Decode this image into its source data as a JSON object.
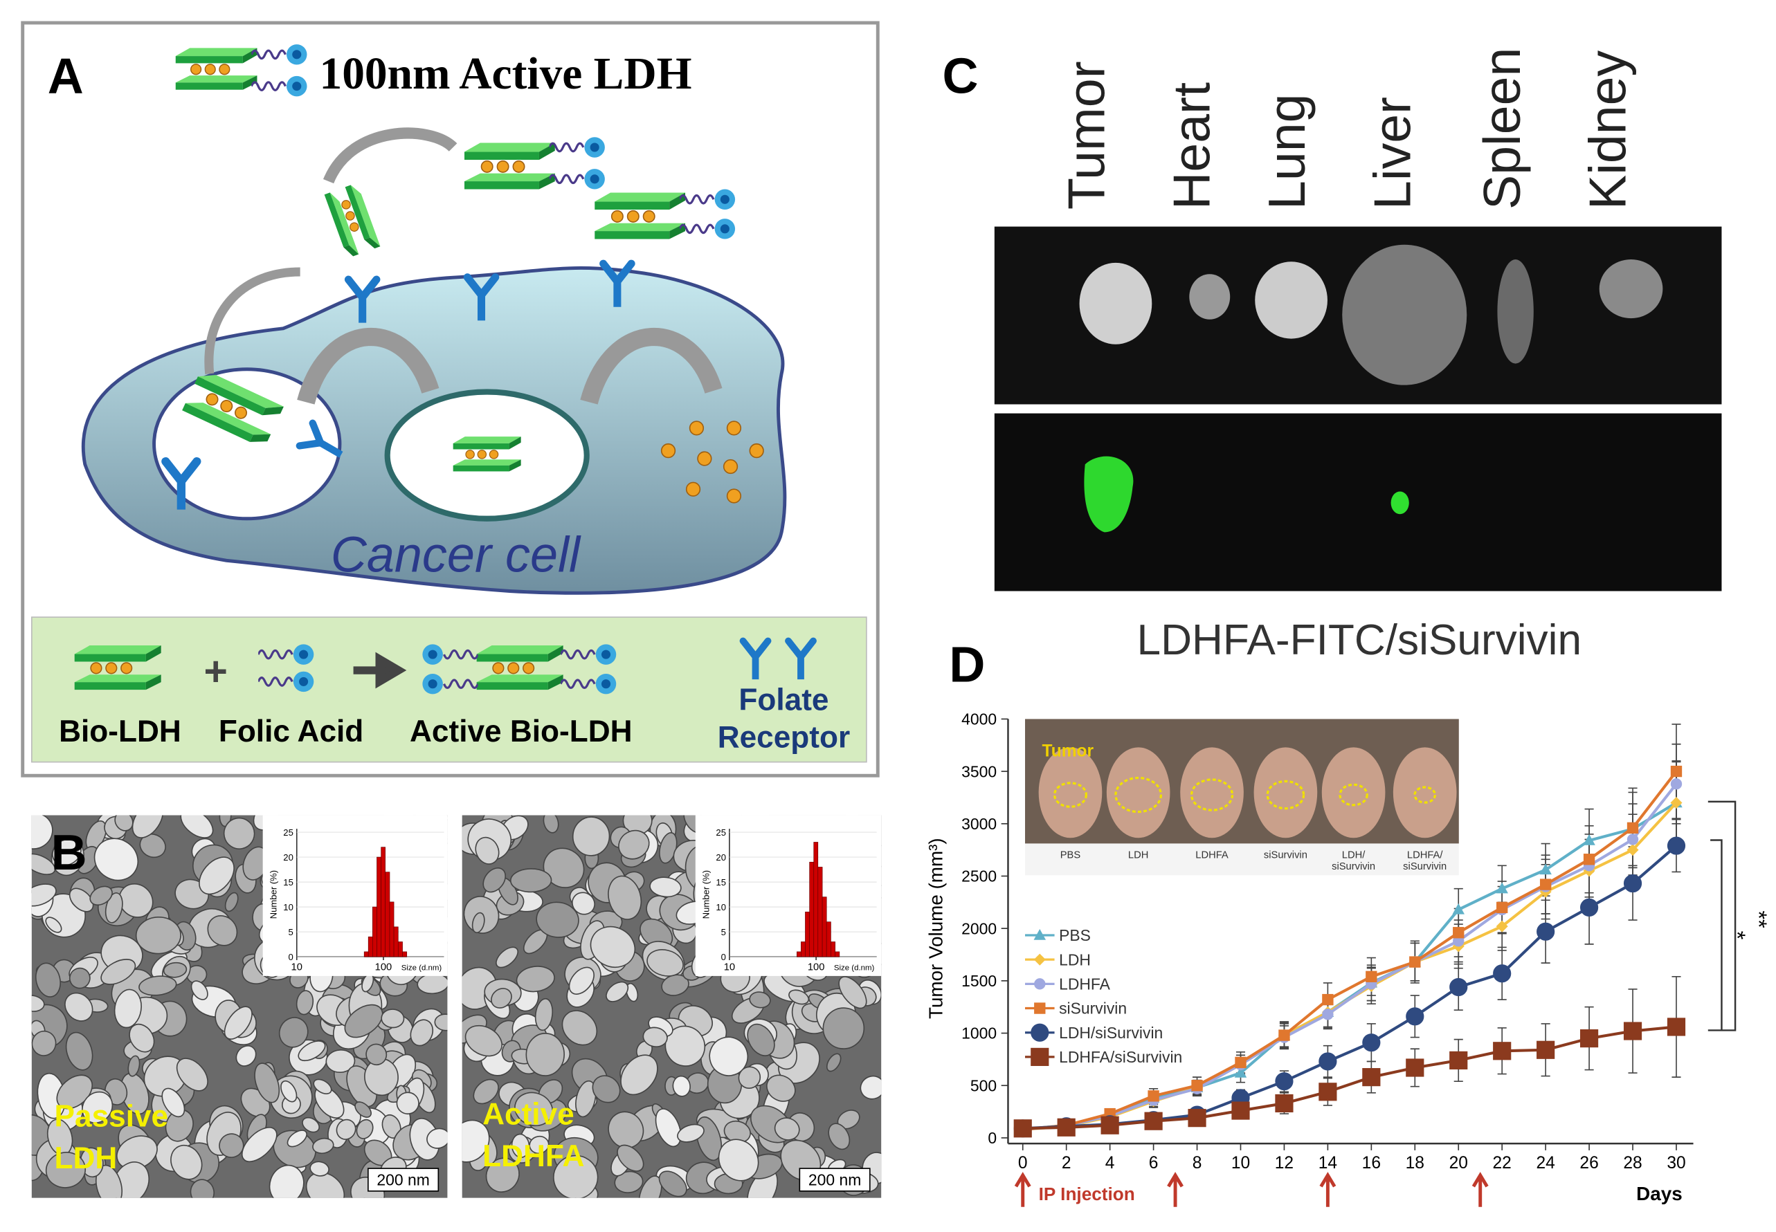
{
  "panel_a": {
    "label": "A",
    "title": "100nm Active LDH",
    "cell_label": "Cancer cell",
    "legend": {
      "bio_ldh": "Bio-LDH",
      "folic_acid": "Folic Acid",
      "active_bio_ldh": "Active Bio-LDH",
      "folate_receptor": [
        "Folate",
        "Receptor"
      ]
    }
  },
  "panel_b": {
    "label": "B",
    "images": [
      {
        "caption": [
          "Passive",
          "LDH"
        ],
        "scale_bar": "200 nm"
      },
      {
        "caption": [
          "Active",
          "LDHFA"
        ],
        "scale_bar": "200 nm"
      }
    ]
  },
  "panel_c": {
    "label": "C",
    "organs": [
      "Tumor",
      "Heart",
      "Lung",
      "Liver",
      "Spleen",
      "Kidney"
    ],
    "caption": "LDHFA-FITC/siSurvivin"
  },
  "panel_d": {
    "label": "D",
    "photo_title": "Tumor",
    "photo_labels": [
      [
        "PBS"
      ],
      [
        "LDH"
      ],
      [
        "LDHFA"
      ],
      [
        "siSurvivin"
      ],
      [
        "LDH/",
        "siSurvivin"
      ],
      [
        "LDHFA/",
        "siSurvivin"
      ]
    ],
    "significance": [
      "*",
      "**"
    ]
  },
  "chart_data": [
    {
      "type": "histogram",
      "bins": [
        60,
        67,
        75,
        84,
        94,
        105,
        118,
        132,
        148,
        166,
        186
      ],
      "values": [
        1,
        4,
        10,
        20,
        22,
        17,
        11,
        6,
        3,
        1
      ],
      "color": "#cc0000",
      "log_x": true,
      "xlim": [
        10,
        500
      ],
      "xticks": [
        10,
        100
      ],
      "ylim": [
        0,
        25
      ],
      "yticks": [
        0,
        5,
        10,
        15,
        20,
        25
      ],
      "x_label": "Size (d.nm)",
      "y_label": "Number (%)"
    },
    {
      "type": "histogram",
      "bins": [
        60,
        67,
        75,
        84,
        94,
        105,
        118,
        132,
        148,
        166,
        186
      ],
      "values": [
        1,
        3,
        9,
        19,
        23,
        18,
        12,
        7,
        3,
        1
      ],
      "color": "#cc0000",
      "log_x": true,
      "xlim": [
        10,
        500
      ],
      "xticks": [
        10,
        100
      ],
      "ylim": [
        0,
        25
      ],
      "yticks": [
        0,
        5,
        10,
        15,
        20,
        25
      ],
      "x_label": "Size (d.nm)",
      "y_label": "Number (%)"
    },
    {
      "type": "line",
      "x_label": "Days",
      "y_label": "Tumor Volume (mm³)",
      "legend": "upper left",
      "x": [
        0,
        2,
        4,
        6,
        8,
        10,
        12,
        14,
        16,
        18,
        20,
        22,
        24,
        26,
        28,
        30
      ],
      "xlim": [
        0,
        30
      ],
      "xticks": [
        0,
        2,
        4,
        6,
        8,
        10,
        12,
        14,
        16,
        18,
        20,
        22,
        24,
        26,
        28,
        30
      ],
      "ylim": [
        0,
        4000
      ],
      "yticks": [
        0,
        500,
        1000,
        1500,
        2000,
        2500,
        3000,
        3500,
        4000
      ],
      "annotation": "IP Injection",
      "injection_days": [
        0,
        7,
        14,
        21
      ],
      "series": [
        {
          "name": "PBS",
          "color": "#5fb0c8",
          "marker": "triangle",
          "values": [
            80,
            120,
            220,
            380,
            480,
            620,
            980,
            1200,
            1480,
            1680,
            2180,
            2380,
            2560,
            2840,
            2950,
            3200
          ],
          "errors": [
            20,
            30,
            40,
            60,
            70,
            90,
            120,
            150,
            170,
            180,
            200,
            220,
            250,
            300,
            350,
            400
          ]
        },
        {
          "name": "LDH",
          "color": "#f5c242",
          "marker": "diamond",
          "values": [
            80,
            110,
            200,
            350,
            480,
            700,
            980,
            1200,
            1450,
            1680,
            1830,
            2020,
            2350,
            2550,
            2750,
            3200
          ],
          "errors": [
            20,
            30,
            40,
            60,
            70,
            90,
            110,
            140,
            170,
            180,
            210,
            230,
            260,
            300,
            340,
            390
          ]
        },
        {
          "name": "LDHFA",
          "color": "#9fa8e0",
          "marker": "circle",
          "values": [
            80,
            115,
            210,
            360,
            470,
            700,
            960,
            1180,
            1470,
            1680,
            1880,
            2180,
            2400,
            2600,
            2850,
            3380
          ],
          "errors": [
            20,
            30,
            40,
            60,
            70,
            90,
            110,
            140,
            160,
            180,
            200,
            220,
            260,
            300,
            340,
            380
          ]
        },
        {
          "name": "siSurvivin",
          "color": "#e0772e",
          "marker": "square",
          "values": [
            80,
            120,
            230,
            400,
            500,
            720,
            980,
            1320,
            1540,
            1680,
            1960,
            2200,
            2420,
            2660,
            2960,
            3500
          ],
          "errors": [
            20,
            30,
            40,
            70,
            80,
            100,
            130,
            160,
            180,
            200,
            230,
            250,
            280,
            320,
            380,
            450
          ]
        },
        {
          "name": "LDH/siSurvivin",
          "color": "#2f4a80",
          "marker": "big-circle",
          "values": [
            90,
            110,
            130,
            170,
            220,
            380,
            540,
            730,
            910,
            1160,
            1440,
            1570,
            1970,
            2200,
            2430,
            2790
          ],
          "errors": [
            20,
            30,
            40,
            50,
            60,
            80,
            100,
            150,
            180,
            200,
            220,
            250,
            300,
            350,
            350,
            250
          ]
        },
        {
          "name": "LDHFA/siSurvivin",
          "color": "#8b3a1e",
          "marker": "big-square",
          "values": [
            90,
            100,
            120,
            160,
            190,
            260,
            330,
            440,
            580,
            670,
            740,
            830,
            840,
            950,
            1020,
            1060
          ],
          "errors": [
            20,
            30,
            40,
            50,
            60,
            80,
            100,
            130,
            150,
            180,
            200,
            220,
            250,
            300,
            400,
            480
          ]
        }
      ]
    }
  ]
}
